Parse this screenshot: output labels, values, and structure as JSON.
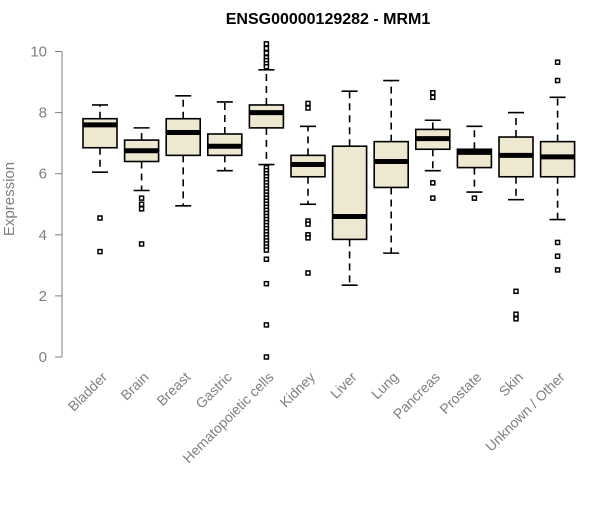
{
  "chart_data": {
    "type": "boxplot",
    "title": "ENSG00000129282 - MRM1",
    "xlabel": "",
    "ylabel": "Expression",
    "ylim": [
      0,
      10.4
    ],
    "yticks": [
      0,
      2,
      4,
      6,
      8,
      10
    ],
    "grid": false,
    "legend": "none",
    "box_color": "#efe8d0",
    "stroke_color": "#000000",
    "axis_color": "#7f7f7f",
    "categories": [
      "Bladder",
      "Brain",
      "Breast",
      "Gastric",
      "Hematopoietic cells",
      "Kidney",
      "Liver",
      "Lung",
      "Pancreas",
      "Prostate",
      "Skin",
      "Unknown / Other"
    ],
    "boxes": [
      {
        "name": "Bladder",
        "low": 6.05,
        "q1": 6.85,
        "median": 7.6,
        "q3": 7.8,
        "high": 8.25,
        "outliers": [
          4.55,
          3.45
        ]
      },
      {
        "name": "Brain",
        "low": 5.45,
        "q1": 6.4,
        "median": 6.75,
        "q3": 7.1,
        "high": 7.5,
        "outliers": [
          5.2,
          5.0,
          4.85,
          3.7
        ]
      },
      {
        "name": "Breast",
        "low": 4.95,
        "q1": 6.6,
        "median": 7.35,
        "q3": 7.8,
        "high": 8.55,
        "outliers": []
      },
      {
        "name": "Gastric",
        "low": 6.1,
        "q1": 6.6,
        "median": 6.9,
        "q3": 7.3,
        "high": 8.35,
        "outliers": []
      },
      {
        "name": "Hematopoietic cells",
        "low": 6.3,
        "q1": 7.5,
        "median": 8.0,
        "q3": 8.25,
        "high": 9.4,
        "outliers": [
          10.25,
          10.1,
          9.95,
          9.8,
          9.7,
          9.6,
          9.5,
          6.2,
          6.1,
          6.0,
          5.9,
          5.8,
          5.7,
          5.6,
          5.5,
          5.4,
          5.3,
          5.2,
          5.1,
          5.0,
          4.9,
          4.8,
          4.7,
          4.6,
          4.5,
          4.4,
          4.3,
          4.2,
          4.1,
          4.0,
          3.9,
          3.8,
          3.7,
          3.6,
          3.5,
          3.2,
          2.4,
          1.05,
          0.0
        ]
      },
      {
        "name": "Kidney",
        "low": 5.0,
        "q1": 5.9,
        "median": 6.3,
        "q3": 6.6,
        "high": 7.55,
        "outliers": [
          8.3,
          8.15,
          4.45,
          4.35,
          4.0,
          3.9,
          2.75
        ]
      },
      {
        "name": "Liver",
        "low": 2.35,
        "q1": 3.85,
        "median": 4.6,
        "q3": 6.9,
        "high": 8.7,
        "outliers": []
      },
      {
        "name": "Lung",
        "low": 3.4,
        "q1": 5.55,
        "median": 6.4,
        "q3": 7.05,
        "high": 9.05,
        "outliers": []
      },
      {
        "name": "Pancreas",
        "low": 6.1,
        "q1": 6.8,
        "median": 7.15,
        "q3": 7.45,
        "high": 7.75,
        "outliers": [
          8.65,
          8.5,
          5.7,
          5.2
        ]
      },
      {
        "name": "Prostate",
        "low": 5.4,
        "q1": 6.2,
        "median": 6.7,
        "q3": 6.8,
        "high": 7.55,
        "outliers": [
          5.2
        ]
      },
      {
        "name": "Skin",
        "low": 5.15,
        "q1": 5.9,
        "median": 6.6,
        "q3": 7.2,
        "high": 8.0,
        "outliers": [
          2.15,
          1.4,
          1.25
        ]
      },
      {
        "name": "Unknown / Other",
        "low": 4.5,
        "q1": 5.9,
        "median": 6.55,
        "q3": 7.05,
        "high": 8.5,
        "outliers": [
          9.65,
          9.05,
          3.75,
          3.3,
          2.85
        ]
      }
    ]
  }
}
